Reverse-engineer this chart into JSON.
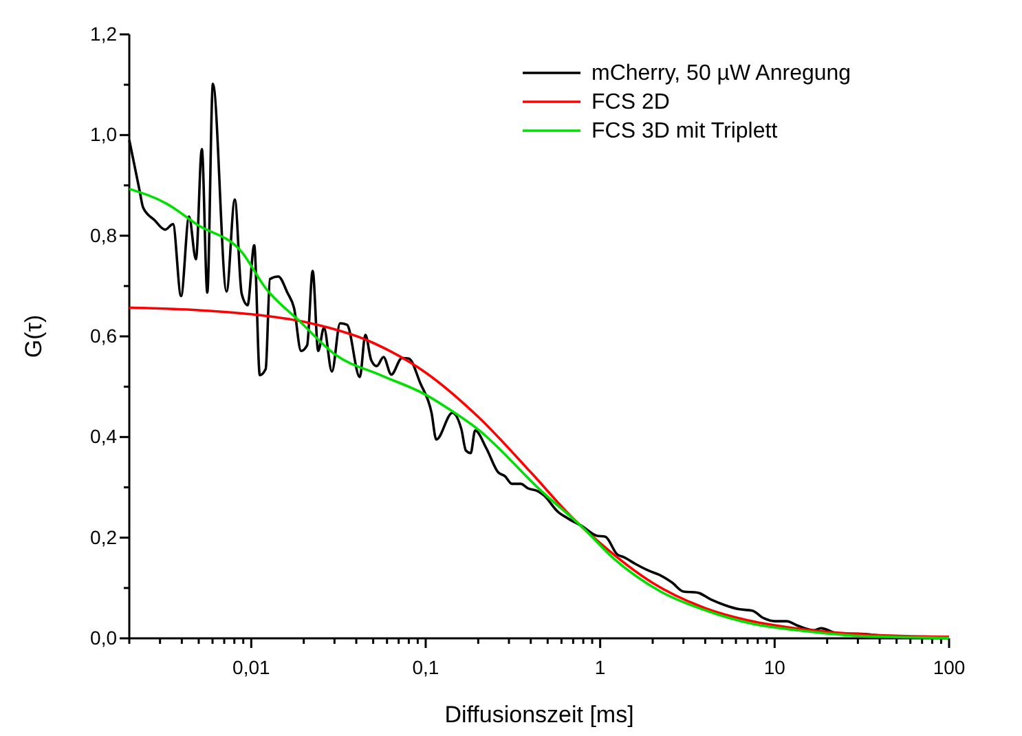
{
  "chart_data": {
    "type": "line",
    "xlabel": "Diffusionszeit [ms]",
    "ylabel": "G(τ)",
    "log": "x",
    "legend": "top right",
    "grid": false,
    "xlim": [
      0.002,
      100
    ],
    "ylim": [
      0,
      1.2
    ],
    "xticks": [
      {
        "value": 0.002,
        "label": null
      },
      {
        "value": 0.003,
        "label": null
      },
      {
        "value": 0.004,
        "label": null
      },
      {
        "value": 0.005,
        "label": null
      },
      {
        "value": 0.006,
        "label": null
      },
      {
        "value": 0.007,
        "label": null
      },
      {
        "value": 0.008,
        "label": null
      },
      {
        "value": 0.009,
        "label": null
      },
      {
        "value": 0.01,
        "label": "0,01"
      },
      {
        "value": 0.02,
        "label": null
      },
      {
        "value": 0.03,
        "label": null
      },
      {
        "value": 0.04,
        "label": null
      },
      {
        "value": 0.05,
        "label": null
      },
      {
        "value": 0.06,
        "label": null
      },
      {
        "value": 0.07,
        "label": null
      },
      {
        "value": 0.08,
        "label": null
      },
      {
        "value": 0.09,
        "label": null
      },
      {
        "value": 0.1,
        "label": "0,1"
      },
      {
        "value": 0.2,
        "label": null
      },
      {
        "value": 0.3,
        "label": null
      },
      {
        "value": 0.4,
        "label": null
      },
      {
        "value": 0.5,
        "label": null
      },
      {
        "value": 0.6,
        "label": null
      },
      {
        "value": 0.7,
        "label": null
      },
      {
        "value": 0.8,
        "label": null
      },
      {
        "value": 0.9,
        "label": null
      },
      1,
      {
        "value": 2,
        "label": null
      },
      {
        "value": 3,
        "label": null
      },
      {
        "value": 4,
        "label": null
      },
      {
        "value": 5,
        "label": null
      },
      {
        "value": 6,
        "label": null
      },
      {
        "value": 7,
        "label": null
      },
      {
        "value": 8,
        "label": null
      },
      {
        "value": 9,
        "label": null
      },
      10,
      {
        "value": 20,
        "label": null
      },
      {
        "value": 30,
        "label": null
      },
      {
        "value": 40,
        "label": null
      },
      {
        "value": 50,
        "label": null
      },
      {
        "value": 60,
        "label": null
      },
      {
        "value": 70,
        "label": null
      },
      {
        "value": 80,
        "label": null
      },
      {
        "value": 90,
        "label": null
      },
      100
    ],
    "yticks": [
      {
        "value": 0,
        "label": "0,0"
      },
      {
        "value": 0.1,
        "label": null
      },
      {
        "value": 0.2,
        "label": "0,2"
      },
      {
        "value": 0.3,
        "label": null
      },
      {
        "value": 0.4,
        "label": "0,4"
      },
      {
        "value": 0.5,
        "label": null
      },
      {
        "value": 0.6,
        "label": "0,6"
      },
      {
        "value": 0.7,
        "label": null
      },
      {
        "value": 0.8,
        "label": "0,8"
      },
      {
        "value": 0.9,
        "label": null
      },
      {
        "value": 1,
        "label": "1,0"
      },
      {
        "value": 1.1,
        "label": null
      },
      {
        "value": 1.2,
        "label": "1,2"
      }
    ],
    "series": [
      {
        "name": "mCherry, 50 µW Anregung",
        "color": "#000000",
        "x": [
          0.002,
          0.00229,
          0.0024,
          0.00279,
          0.00321,
          0.00356,
          0.00396,
          0.0044,
          0.00482,
          0.00521,
          0.0056,
          0.00603,
          0.00722,
          0.00805,
          0.00881,
          0.00953,
          0.0104,
          0.0112,
          0.0121,
          0.0128,
          0.0143,
          0.0161,
          0.0176,
          0.0193,
          0.0209,
          0.0225,
          0.0242,
          0.0261,
          0.029,
          0.0323,
          0.0354,
          0.0419,
          0.0451,
          0.0487,
          0.0524,
          0.0573,
          0.0635,
          0.0731,
          0.08,
          0.0931,
          0.108,
          0.115,
          0.142,
          0.16,
          0.17,
          0.181,
          0.192,
          0.223,
          0.26,
          0.285,
          0.312,
          0.351,
          0.385,
          0.435,
          0.476,
          0.57,
          0.663,
          0.794,
          0.953,
          1.07,
          1.25,
          1.37,
          1.59,
          1.91,
          2.22,
          2.58,
          3.0,
          3.6,
          4.32,
          5.18,
          6.21,
          7.44,
          8.65,
          10.05,
          11.7,
          13.6,
          16.8,
          18.4,
          23.5,
          29.9,
          45.6,
          100
        ],
        "values": [
          0.99,
          0.89,
          0.856,
          0.831,
          0.812,
          0.823,
          0.68,
          0.838,
          0.753,
          0.972,
          0.687,
          1.102,
          0.689,
          0.872,
          0.685,
          0.662,
          0.781,
          0.523,
          0.535,
          0.714,
          0.719,
          0.687,
          0.656,
          0.571,
          0.582,
          0.73,
          0.571,
          0.617,
          0.53,
          0.626,
          0.623,
          0.519,
          0.603,
          0.553,
          0.541,
          0.559,
          0.524,
          0.557,
          0.556,
          0.507,
          0.448,
          0.395,
          0.448,
          0.416,
          0.373,
          0.368,
          0.413,
          0.377,
          0.33,
          0.322,
          0.307,
          0.307,
          0.298,
          0.293,
          0.284,
          0.252,
          0.237,
          0.222,
          0.204,
          0.202,
          0.167,
          0.161,
          0.148,
          0.134,
          0.125,
          0.111,
          0.093,
          0.091,
          0.077,
          0.066,
          0.058,
          0.055,
          0.04,
          0.034,
          0.034,
          0.025,
          0.016,
          0.02,
          0.009,
          0.009,
          0.004,
          0.002
        ]
      },
      {
        "name": "FCS 2D",
        "color": "#ff0000",
        "x": [
          0.002,
          0.005,
          0.01,
          0.02,
          0.05,
          0.1,
          0.2,
          0.4,
          0.7,
          1,
          2,
          4,
          7,
          10,
          20,
          50,
          100
        ],
        "values": [
          0.657,
          0.652,
          0.644,
          0.629,
          0.587,
          0.528,
          0.44,
          0.33,
          0.238,
          0.189,
          0.11,
          0.06,
          0.036,
          0.026,
          0.013,
          0.005,
          0.003
        ]
      },
      {
        "name": "FCS 3D mit Triplett",
        "color": "#00e000",
        "x": [
          0.002,
          0.0033,
          0.0049,
          0.0088,
          0.0122,
          0.0188,
          0.0305,
          0.056,
          0.1,
          0.138,
          0.198,
          0.459,
          0.794,
          1.21,
          2.22,
          4.06,
          7.44,
          13.6,
          33.7,
          100
        ],
        "values": [
          0.893,
          0.863,
          0.822,
          0.768,
          0.694,
          0.631,
          0.563,
          0.522,
          0.484,
          0.454,
          0.416,
          0.293,
          0.22,
          0.157,
          0.093,
          0.055,
          0.029,
          0.016,
          0.004,
          0.001
        ]
      }
    ]
  }
}
